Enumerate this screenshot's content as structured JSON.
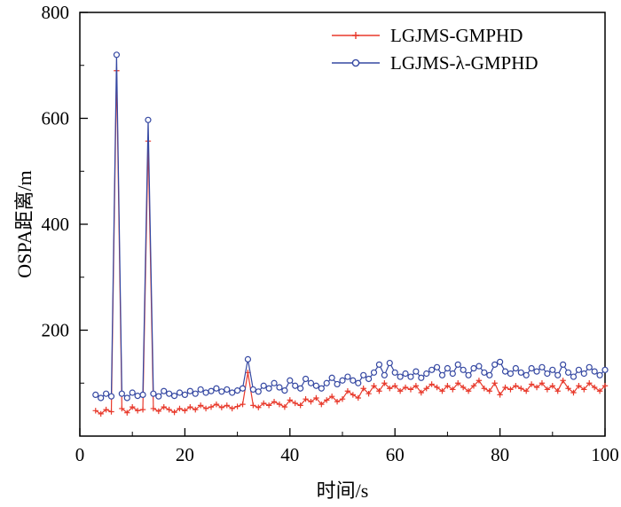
{
  "figure": {
    "background": "#ffffff",
    "axis_color": "#000000"
  },
  "chart_data": {
    "type": "line",
    "title": "",
    "xlabel": "时间/s",
    "ylabel": "OSPA距离/m",
    "xlim": [
      0,
      100
    ],
    "ylim": [
      0,
      800
    ],
    "x_ticks": [
      0,
      20,
      40,
      60,
      80,
      100
    ],
    "y_ticks": [
      200,
      400,
      600,
      800
    ],
    "x_minor_ticks": [
      10,
      30,
      50,
      70,
      90
    ],
    "y_minor_ticks": [
      100,
      300,
      500,
      700
    ],
    "grid": false,
    "legend_position": "inside-top-center",
    "x": [
      3,
      4,
      5,
      6,
      7,
      8,
      9,
      10,
      11,
      12,
      13,
      14,
      15,
      16,
      17,
      18,
      19,
      20,
      21,
      22,
      23,
      24,
      25,
      26,
      27,
      28,
      29,
      30,
      31,
      32,
      33,
      34,
      35,
      36,
      37,
      38,
      39,
      40,
      41,
      42,
      43,
      44,
      45,
      46,
      47,
      48,
      49,
      50,
      51,
      52,
      53,
      54,
      55,
      56,
      57,
      58,
      59,
      60,
      61,
      62,
      63,
      64,
      65,
      66,
      67,
      68,
      69,
      70,
      71,
      72,
      73,
      74,
      75,
      76,
      77,
      78,
      79,
      80,
      81,
      82,
      83,
      84,
      85,
      86,
      87,
      88,
      89,
      90,
      91,
      92,
      93,
      94,
      95,
      96,
      97,
      98,
      99,
      100
    ],
    "series": [
      {
        "name": "LGJMS-GMPHD",
        "color": "#e8392b",
        "marker": "plus",
        "values": [
          48,
          42,
          50,
          46,
          690,
          52,
          44,
          55,
          48,
          50,
          557,
          52,
          47,
          55,
          50,
          45,
          52,
          48,
          55,
          50,
          58,
          52,
          55,
          60,
          54,
          58,
          52,
          56,
          60,
          120,
          58,
          54,
          62,
          58,
          65,
          60,
          55,
          68,
          62,
          58,
          70,
          65,
          72,
          60,
          68,
          75,
          65,
          70,
          85,
          78,
          72,
          90,
          80,
          95,
          85,
          100,
          90,
          95,
          85,
          92,
          88,
          95,
          82,
          90,
          98,
          92,
          85,
          95,
          88,
          100,
          92,
          85,
          95,
          105,
          90,
          85,
          100,
          78,
          92,
          88,
          95,
          90,
          85,
          98,
          92,
          100,
          88,
          95,
          85,
          105,
          90,
          82,
          95,
          88,
          100,
          92,
          85,
          95
        ]
      },
      {
        "name": "LGJMS-λ-GMPHD",
        "color": "#3548a2",
        "marker": "circle",
        "values": [
          78,
          72,
          80,
          75,
          720,
          80,
          72,
          82,
          76,
          78,
          597,
          80,
          75,
          85,
          80,
          76,
          82,
          78,
          85,
          80,
          88,
          82,
          85,
          90,
          84,
          88,
          82,
          86,
          90,
          145,
          88,
          84,
          95,
          90,
          100,
          92,
          86,
          105,
          95,
          90,
          108,
          100,
          95,
          90,
          100,
          110,
          98,
          105,
          112,
          105,
          100,
          115,
          108,
          120,
          135,
          115,
          138,
          120,
          112,
          118,
          112,
          122,
          110,
          118,
          125,
          130,
          115,
          128,
          118,
          135,
          125,
          115,
          128,
          132,
          120,
          115,
          135,
          140,
          122,
          118,
          128,
          120,
          115,
          128,
          122,
          130,
          118,
          125,
          115,
          135,
          120,
          112,
          125,
          118,
          130,
          122,
          115,
          125
        ]
      }
    ]
  }
}
